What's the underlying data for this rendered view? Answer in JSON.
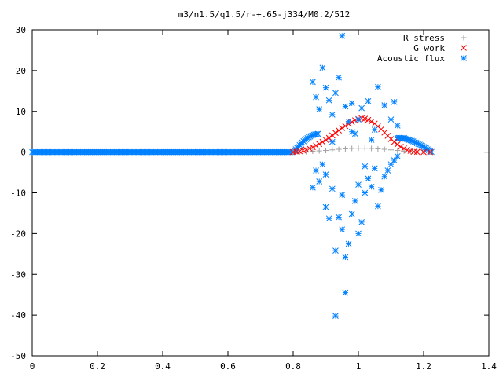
{
  "chart_data": {
    "type": "scatter",
    "title": "m3/n1.5/q1.5/r-+.65-j334/M0.2/512",
    "xlabel": "",
    "ylabel": "",
    "xlim": [
      0,
      1.4
    ],
    "ylim": [
      -50,
      30
    ],
    "xticks": [
      "0",
      "0.2",
      "0.4",
      "0.6",
      "0.8",
      "1",
      "1.2",
      "1.4"
    ],
    "yticks": [
      "30",
      "20",
      "10",
      "0",
      "-10",
      "-20",
      "-30",
      "-40",
      "-50"
    ],
    "xtick_values": [
      0,
      0.2,
      0.4,
      0.6,
      0.8,
      1,
      1.2,
      1.4
    ],
    "ytick_values": [
      30,
      20,
      10,
      0,
      -10,
      -20,
      -30,
      -40,
      -50
    ],
    "grid": false,
    "legend_position": "top-right",
    "series": [
      {
        "name": "R stress",
        "color": "#a0a0a0",
        "marker": "plus",
        "points": [
          [
            0.8,
            0.0
          ],
          [
            0.82,
            0.05
          ],
          [
            0.84,
            0.1
          ],
          [
            0.86,
            0.2
          ],
          [
            0.88,
            0.3
          ],
          [
            0.9,
            0.4
          ],
          [
            0.92,
            0.55
          ],
          [
            0.94,
            0.7
          ],
          [
            0.96,
            0.8
          ],
          [
            0.98,
            0.9
          ],
          [
            1.0,
            0.95
          ],
          [
            1.02,
            0.95
          ],
          [
            1.04,
            0.9
          ],
          [
            1.06,
            0.8
          ],
          [
            1.08,
            0.7
          ],
          [
            1.1,
            0.55
          ],
          [
            1.12,
            0.4
          ],
          [
            1.14,
            0.25
          ],
          [
            1.16,
            0.1
          ],
          [
            1.18,
            0.05
          ],
          [
            1.2,
            0.0
          ],
          [
            1.22,
            0.0
          ]
        ]
      },
      {
        "name": "G work",
        "color": "#ff0000",
        "marker": "cross",
        "points": [
          [
            0.8,
            0.0
          ],
          [
            0.81,
            0.1
          ],
          [
            0.82,
            0.2
          ],
          [
            0.83,
            0.4
          ],
          [
            0.84,
            0.6
          ],
          [
            0.85,
            0.9
          ],
          [
            0.86,
            1.2
          ],
          [
            0.87,
            1.6
          ],
          [
            0.88,
            2.0
          ],
          [
            0.89,
            2.5
          ],
          [
            0.9,
            3.0
          ],
          [
            0.91,
            3.5
          ],
          [
            0.92,
            4.1
          ],
          [
            0.93,
            4.7
          ],
          [
            0.94,
            5.3
          ],
          [
            0.95,
            5.9
          ],
          [
            0.96,
            6.4
          ],
          [
            0.97,
            6.9
          ],
          [
            0.98,
            7.4
          ],
          [
            0.99,
            7.8
          ],
          [
            1.0,
            8.1
          ],
          [
            1.01,
            8.3
          ],
          [
            1.02,
            8.2
          ],
          [
            1.03,
            7.9
          ],
          [
            1.04,
            7.5
          ],
          [
            1.05,
            7.0
          ],
          [
            1.06,
            6.3
          ],
          [
            1.07,
            5.6
          ],
          [
            1.08,
            4.8
          ],
          [
            1.09,
            4.0
          ],
          [
            1.1,
            3.2
          ],
          [
            1.11,
            2.5
          ],
          [
            1.12,
            1.9
          ],
          [
            1.13,
            1.3
          ],
          [
            1.14,
            0.9
          ],
          [
            1.15,
            0.5
          ],
          [
            1.16,
            0.3
          ],
          [
            1.17,
            0.1
          ],
          [
            1.18,
            0.05
          ],
          [
            1.2,
            0.0
          ],
          [
            1.22,
            0.0
          ]
        ]
      },
      {
        "name": "Acoustic flux",
        "color": "#0080ff",
        "marker": "star",
        "points": [
          [
            0.86,
            17.2
          ],
          [
            0.87,
            13.5
          ],
          [
            0.88,
            10.5
          ],
          [
            0.89,
            20.7
          ],
          [
            0.9,
            15.8
          ],
          [
            0.91,
            12.7
          ],
          [
            0.92,
            9.2
          ],
          [
            0.93,
            14.5
          ],
          [
            0.94,
            18.3
          ],
          [
            0.95,
            28.5
          ],
          [
            0.96,
            11.2
          ],
          [
            0.97,
            7.5
          ],
          [
            0.98,
            12.0
          ],
          [
            0.99,
            4.5
          ],
          [
            1.0,
            8.0
          ],
          [
            1.01,
            10.8
          ],
          [
            1.03,
            12.5
          ],
          [
            1.05,
            5.5
          ],
          [
            1.06,
            16.0
          ],
          [
            1.08,
            11.5
          ],
          [
            1.1,
            8.0
          ],
          [
            1.11,
            12.3
          ],
          [
            1.12,
            6.5
          ],
          [
            1.14,
            3.5
          ],
          [
            0.86,
            -8.7
          ],
          [
            0.87,
            -4.5
          ],
          [
            0.88,
            -7.2
          ],
          [
            0.89,
            -3.0
          ],
          [
            0.9,
            -13.5
          ],
          [
            0.91,
            -16.3
          ],
          [
            0.92,
            -9.0
          ],
          [
            0.93,
            -24.2
          ],
          [
            0.93,
            -40.2
          ],
          [
            0.94,
            -16.0
          ],
          [
            0.95,
            -19.0
          ],
          [
            0.96,
            -34.5
          ],
          [
            0.96,
            -25.8
          ],
          [
            0.97,
            -22.5
          ],
          [
            0.98,
            -15.2
          ],
          [
            0.99,
            -12.0
          ],
          [
            1.0,
            -20.0
          ],
          [
            1.01,
            -17.2
          ],
          [
            1.02,
            -10.0
          ],
          [
            1.03,
            -6.5
          ],
          [
            1.04,
            -8.5
          ],
          [
            1.05,
            -4.0
          ],
          [
            1.06,
            -13.3
          ],
          [
            1.07,
            -9.3
          ],
          [
            1.08,
            -6.0
          ],
          [
            1.09,
            -4.5
          ],
          [
            1.1,
            -3.0
          ],
          [
            1.11,
            -2.0
          ],
          [
            1.12,
            -1.0
          ],
          [
            0.9,
            -5.5
          ],
          [
            0.95,
            -10.5
          ],
          [
            1.0,
            -8.0
          ],
          [
            1.02,
            -3.5
          ],
          [
            0.98,
            5.0
          ],
          [
            0.92,
            2.5
          ],
          [
            1.04,
            3.0
          ]
        ]
      }
    ]
  }
}
